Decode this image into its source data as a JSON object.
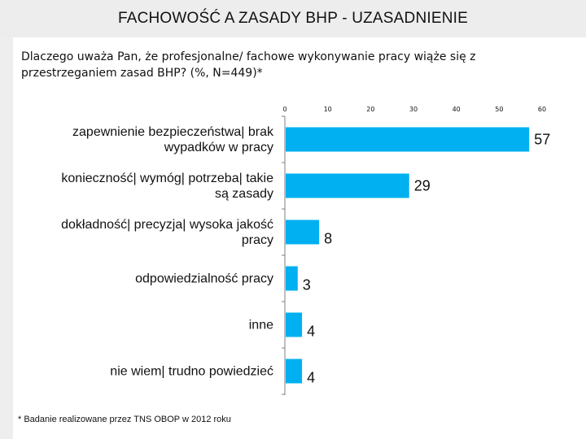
{
  "header": {
    "title": "FACHOWOŚĆ A ZASADY BHP - UZASADNIENIE"
  },
  "question": "Dlaczego uważa Pan, że profesjonalne/ fachowe wykonywanie pracy wiąże się z przestrzeganiem zasad BHP? (%, N=449)*",
  "footnote": "* Badanie realizowane przez TNS OBOP w 2012 roku",
  "colors": {
    "bar": "#00b0f0",
    "background": "#eeeeee",
    "panel": "#ffffff",
    "axis": "#7f7f7f"
  },
  "chart_data": {
    "type": "bar",
    "orientation": "horizontal",
    "categories": [
      [
        "zapewnienie bezpieczeństwa| brak",
        "wypadków w pracy"
      ],
      [
        "konieczność| wymóg| potrzeba| takie",
        "są zasady"
      ],
      [
        "dokładność| precyzja| wysoka jakość",
        "pracy"
      ],
      [
        "odpowiedzialność pracy"
      ],
      [
        "inne"
      ],
      [
        "nie wiem| trudno powiedzieć"
      ]
    ],
    "values": [
      57,
      29,
      8,
      3,
      4,
      4
    ],
    "value_labels": [
      "57",
      "29",
      "8",
      "3",
      "4",
      "4"
    ],
    "xlim": [
      0,
      60
    ],
    "x_ticks": [
      0,
      10,
      20,
      30,
      40,
      50,
      60
    ],
    "x_tick_labels": [
      "0",
      "10",
      "20",
      "30",
      "40",
      "50",
      "60"
    ],
    "axis_position": "top",
    "grid": false,
    "legend": "none"
  }
}
